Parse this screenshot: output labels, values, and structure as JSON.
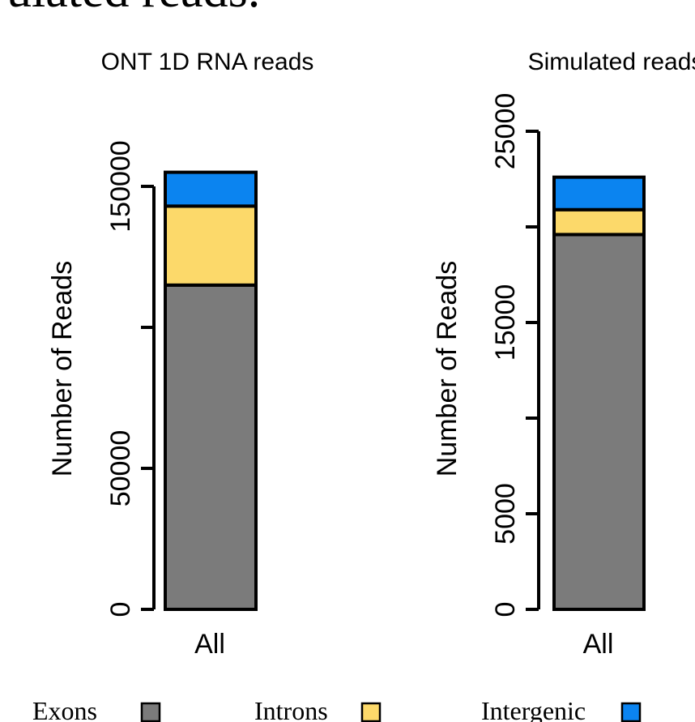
{
  "header_fragment": "ulated reads.",
  "chart_data": [
    {
      "type": "bar",
      "stacked": true,
      "title": "ONT 1D RNA reads",
      "ylabel": "Number of Reads",
      "categories": [
        "All"
      ],
      "ylim": [
        0,
        160000
      ],
      "yticks": [
        0,
        50000,
        100000,
        150000
      ],
      "ytick_labels": [
        "0",
        "50000",
        "",
        "150000"
      ],
      "series": [
        {
          "name": "Exons",
          "values": [
            115000
          ]
        },
        {
          "name": "Introns",
          "values": [
            28000
          ]
        },
        {
          "name": "Intergenic",
          "values": [
            12000
          ]
        }
      ]
    },
    {
      "type": "bar",
      "stacked": true,
      "title": "Simulated reads",
      "ylabel": "Number of Reads",
      "categories": [
        "All"
      ],
      "ylim": [
        0,
        25000
      ],
      "yticks": [
        0,
        5000,
        10000,
        15000,
        20000,
        25000
      ],
      "ytick_labels": [
        "0",
        "5000",
        "",
        "15000",
        "",
        "25000"
      ],
      "series": [
        {
          "name": "Exons",
          "values": [
            19600
          ]
        },
        {
          "name": "Introns",
          "values": [
            1300
          ]
        },
        {
          "name": "Intergenic",
          "values": [
            1700
          ]
        }
      ]
    }
  ],
  "legend": [
    {
      "label": "Exons",
      "color": "#7b7b7b"
    },
    {
      "label": "Introns",
      "color": "#fcd96a"
    },
    {
      "label": "Intergenic",
      "color": "#0b84f0"
    }
  ],
  "colors": {
    "Exons": "#7b7b7b",
    "Introns": "#fcd96a",
    "Intergenic": "#0b84f0"
  }
}
